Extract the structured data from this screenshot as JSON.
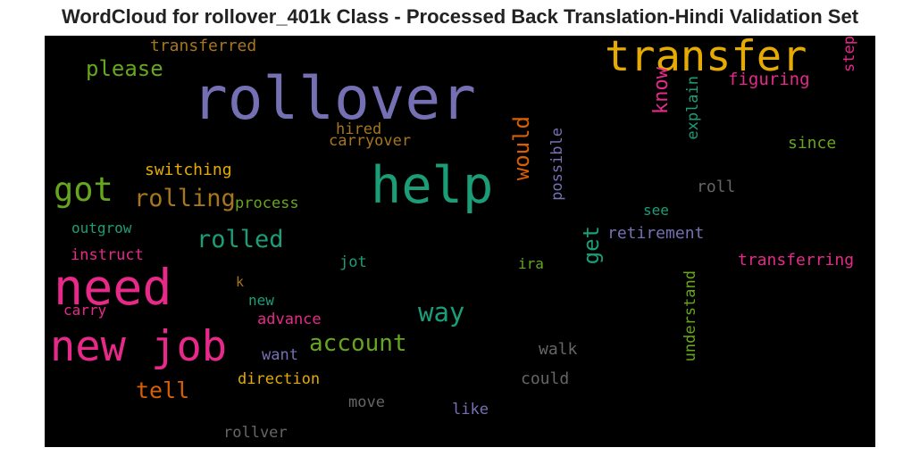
{
  "chart_data": {
    "type": "wordcloud",
    "title": "WordCloud for rollover_401k Class - Processed Back Translation-Hindi Validation Set",
    "background": "#000000",
    "words": [
      {
        "text": "rollover",
        "weight": 66,
        "color": "#7570b3"
      },
      {
        "text": "help",
        "weight": 57,
        "color": "#1b9e77"
      },
      {
        "text": "need",
        "weight": 55,
        "color": "#e7298a"
      },
      {
        "text": "new job",
        "weight": 47,
        "color": "#e7298a"
      },
      {
        "text": "transfer",
        "weight": 47,
        "color": "#e6ab02"
      },
      {
        "text": "got",
        "weight": 37,
        "color": "#66a61e"
      },
      {
        "text": "rolling",
        "weight": 27,
        "color": "#a6761d"
      },
      {
        "text": "rolled",
        "weight": 27,
        "color": "#1b9e77"
      },
      {
        "text": "way",
        "weight": 29,
        "color": "#1b9e77"
      },
      {
        "text": "account",
        "weight": 26,
        "color": "#66a61e"
      },
      {
        "text": "tell",
        "weight": 25,
        "color": "#d95f02"
      },
      {
        "text": "please",
        "weight": 24,
        "color": "#66a61e"
      },
      {
        "text": "would",
        "weight": 24,
        "color": "#d95f02"
      },
      {
        "text": "get",
        "weight": 24,
        "color": "#1b9e77"
      },
      {
        "text": "know",
        "weight": 22,
        "color": "#e7298a"
      },
      {
        "text": "transferred",
        "weight": 18,
        "color": "#a6761d"
      },
      {
        "text": "figuring",
        "weight": 19,
        "color": "#e7298a"
      },
      {
        "text": "step",
        "weight": 17,
        "color": "#e7298a"
      },
      {
        "text": "explain",
        "weight": 17,
        "color": "#1b9e77"
      },
      {
        "text": "hired",
        "weight": 17,
        "color": "#a6761d"
      },
      {
        "text": "carryover",
        "weight": 17,
        "color": "#a6761d"
      },
      {
        "text": "since",
        "weight": 18,
        "color": "#66a61e"
      },
      {
        "text": "switching",
        "weight": 18,
        "color": "#e6ab02"
      },
      {
        "text": "possible",
        "weight": 17,
        "color": "#7570b3"
      },
      {
        "text": "roll",
        "weight": 18,
        "color": "#666666"
      },
      {
        "text": "process",
        "weight": 17,
        "color": "#66a61e"
      },
      {
        "text": "see",
        "weight": 16,
        "color": "#1b9e77"
      },
      {
        "text": "outgrow",
        "weight": 16,
        "color": "#1b9e77"
      },
      {
        "text": "retirement",
        "weight": 18,
        "color": "#7570b3"
      },
      {
        "text": "instruct",
        "weight": 17,
        "color": "#e7298a"
      },
      {
        "text": "jot",
        "weight": 17,
        "color": "#1b9e77"
      },
      {
        "text": "ira",
        "weight": 16,
        "color": "#66a61e"
      },
      {
        "text": "transferring",
        "weight": 18,
        "color": "#e7298a"
      },
      {
        "text": "k",
        "weight": 15,
        "color": "#a6761d"
      },
      {
        "text": "understand",
        "weight": 17,
        "color": "#66a61e"
      },
      {
        "text": "new",
        "weight": 16,
        "color": "#1b9e77"
      },
      {
        "text": "carry",
        "weight": 16,
        "color": "#e7298a"
      },
      {
        "text": "advance",
        "weight": 17,
        "color": "#e7298a"
      },
      {
        "text": "walk",
        "weight": 18,
        "color": "#666666"
      },
      {
        "text": "want",
        "weight": 17,
        "color": "#7570b3"
      },
      {
        "text": "direction",
        "weight": 17,
        "color": "#e6ab02"
      },
      {
        "text": "could",
        "weight": 18,
        "color": "#666666"
      },
      {
        "text": "move",
        "weight": 17,
        "color": "#666666"
      },
      {
        "text": "like",
        "weight": 17,
        "color": "#7570b3"
      },
      {
        "text": "rollver",
        "weight": 17,
        "color": "#666666"
      }
    ]
  }
}
